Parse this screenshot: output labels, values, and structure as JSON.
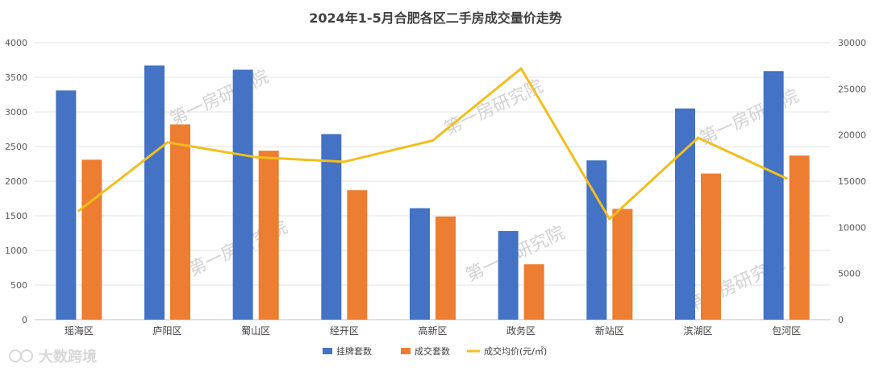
{
  "chart_data": {
    "type": "bar",
    "title": "2024年1-5月合肥各区二手房成交量价走势",
    "categories": [
      "瑶海区",
      "庐阳区",
      "蜀山区",
      "经开区",
      "高新区",
      "政务区",
      "新站区",
      "滨湖区",
      "包河区"
    ],
    "series": [
      {
        "name": "挂牌套数",
        "type": "bar",
        "axis": "left",
        "color": "#4472C4",
        "values": [
          3310,
          3670,
          3610,
          2680,
          1610,
          1280,
          2300,
          3050,
          3590
        ]
      },
      {
        "name": "成交套数",
        "type": "bar",
        "axis": "left",
        "color": "#ED7D31",
        "values": [
          2310,
          2820,
          2440,
          1870,
          1490,
          800,
          1600,
          2110,
          2370
        ]
      },
      {
        "name": "成交均价(元/㎡)",
        "type": "line",
        "axis": "right",
        "color": "#F2BE1D",
        "values": [
          11800,
          19200,
          17600,
          17100,
          19400,
          27200,
          10900,
          19700,
          15300
        ]
      }
    ],
    "left_axis": {
      "min": 0,
      "max": 4000,
      "step": 500,
      "ticks": [
        "0",
        "500",
        "1000",
        "1500",
        "2000",
        "2500",
        "3000",
        "3500",
        "4000"
      ]
    },
    "right_axis": {
      "min": 0,
      "max": 30000,
      "step": 5000,
      "ticks": [
        "0",
        "5000",
        "10000",
        "15000",
        "20000",
        "25000",
        "30000"
      ]
    },
    "grid": true,
    "legend_position": "bottom",
    "watermarks": [
      "第一房研究院",
      "第一房研究院",
      "第一房研究院",
      "第一房研究院",
      "第一房研究院",
      "第一房研究院"
    ],
    "brand_logo": "大数跨境"
  }
}
